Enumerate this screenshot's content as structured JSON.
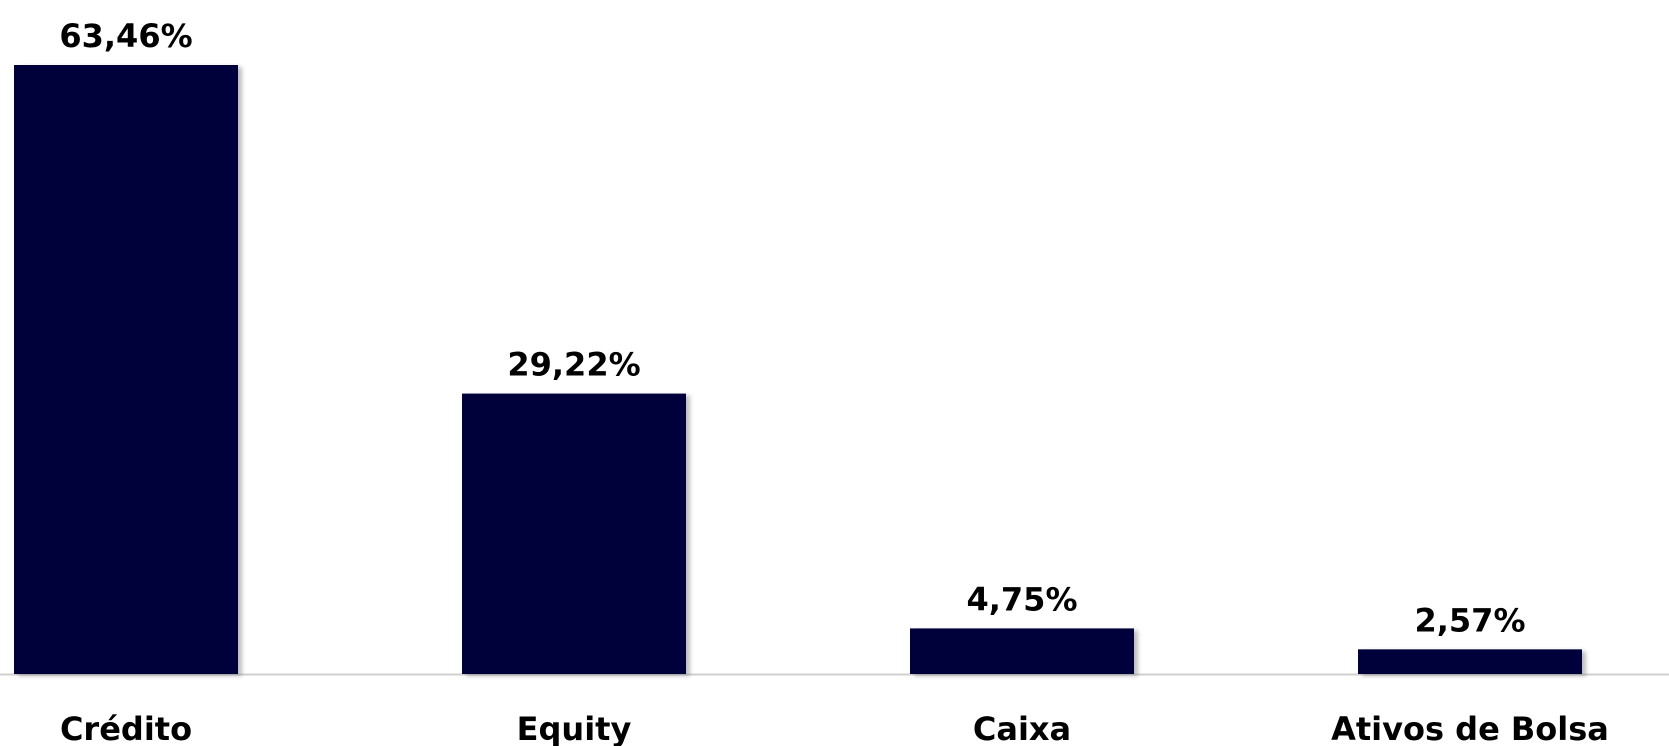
{
  "chart_data": {
    "type": "bar",
    "categories": [
      "Crédito",
      "Equity",
      "Caixa",
      "Ativos de Bolsa"
    ],
    "values": [
      63.46,
      29.22,
      4.75,
      2.57
    ],
    "value_labels": [
      "63,46%",
      "29,22%",
      "4,75%",
      "2,57%"
    ],
    "color": "#00003a"
  }
}
